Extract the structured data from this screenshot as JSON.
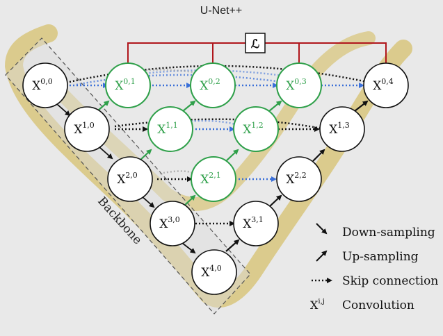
{
  "title": "U-Net++",
  "loss_symbol": "ℒ",
  "backbone_label": "Backbone",
  "colors": {
    "background": "#e9e9e9",
    "highlight": "#d8c57d",
    "green": "#2fa04a",
    "black": "#111111",
    "blue": "#3a6fd8",
    "red": "#b0161c",
    "node_fill": "#ffffff"
  },
  "nodes": [
    {
      "id": "x00",
      "i": "0",
      "j": "0",
      "color": "black"
    },
    {
      "id": "x10",
      "i": "1",
      "j": "0",
      "color": "black"
    },
    {
      "id": "x20",
      "i": "2",
      "j": "0",
      "color": "black"
    },
    {
      "id": "x30",
      "i": "3",
      "j": "0",
      "color": "black"
    },
    {
      "id": "x40",
      "i": "4",
      "j": "0",
      "color": "black"
    },
    {
      "id": "x01",
      "i": "0",
      "j": "1",
      "color": "green"
    },
    {
      "id": "x11",
      "i": "1",
      "j": "1",
      "color": "green"
    },
    {
      "id": "x21",
      "i": "2",
      "j": "1",
      "color": "green"
    },
    {
      "id": "x02",
      "i": "0",
      "j": "2",
      "color": "green"
    },
    {
      "id": "x12",
      "i": "1",
      "j": "2",
      "color": "green"
    },
    {
      "id": "x03",
      "i": "0",
      "j": "3",
      "color": "green"
    },
    {
      "id": "x31",
      "i": "3",
      "j": "1",
      "color": "black"
    },
    {
      "id": "x22",
      "i": "2",
      "j": "2",
      "color": "black"
    },
    {
      "id": "x13",
      "i": "1",
      "j": "3",
      "color": "black"
    },
    {
      "id": "x04",
      "i": "0",
      "j": "4",
      "color": "black"
    }
  ],
  "legend": [
    {
      "symbol": "down-arrow",
      "label": "Down-sampling"
    },
    {
      "symbol": "up-arrow",
      "label": "Up-sampling"
    },
    {
      "symbol": "dotted-arrow",
      "label": "Skip connection"
    },
    {
      "symbol": "X",
      "symbol_sup": "i,j",
      "label": "Convolution"
    }
  ]
}
